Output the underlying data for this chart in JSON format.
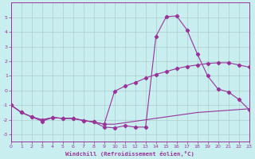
{
  "title": "",
  "xlabel": "Windchill (Refroidissement éolien,°C)",
  "background_color": "#c8eef0",
  "grid_color": "#b0cccc",
  "line_color": "#993399",
  "xlim": [
    0,
    23
  ],
  "ylim": [
    -3.5,
    6.0
  ],
  "yticks": [
    -3,
    -2,
    -1,
    0,
    1,
    2,
    3,
    4,
    5
  ],
  "xticks": [
    0,
    1,
    2,
    3,
    4,
    5,
    6,
    7,
    8,
    9,
    10,
    11,
    12,
    13,
    14,
    15,
    16,
    17,
    18,
    19,
    20,
    21,
    22,
    23
  ],
  "series1_x": [
    0,
    1,
    2,
    3,
    4,
    5,
    6,
    7,
    8,
    9,
    10,
    11,
    12,
    13,
    14,
    15,
    16,
    17,
    18,
    19,
    20,
    21,
    22,
    23
  ],
  "series1_y": [
    -1.0,
    -1.5,
    -1.8,
    -2.1,
    -1.85,
    -1.9,
    -1.9,
    -2.05,
    -2.15,
    -2.5,
    -2.55,
    -2.4,
    -2.5,
    -2.5,
    3.7,
    5.05,
    5.1,
    4.15,
    2.5,
    1.0,
    0.1,
    -0.1,
    -0.6,
    -1.3
  ],
  "series2_x": [
    0,
    1,
    2,
    3,
    4,
    5,
    6,
    7,
    8,
    9,
    10,
    11,
    12,
    13,
    14,
    15,
    16,
    17,
    18,
    19,
    20,
    21,
    22,
    23
  ],
  "series2_y": [
    -1.0,
    -1.5,
    -1.8,
    -2.0,
    -1.85,
    -1.9,
    -1.9,
    -2.05,
    -2.15,
    -2.3,
    -0.05,
    0.3,
    0.55,
    0.85,
    1.1,
    1.3,
    1.5,
    1.65,
    1.75,
    1.85,
    1.9,
    1.9,
    1.75,
    1.6
  ],
  "series3_x": [
    0,
    1,
    2,
    3,
    4,
    5,
    6,
    7,
    8,
    9,
    10,
    11,
    12,
    13,
    14,
    15,
    16,
    17,
    18,
    19,
    20,
    21,
    22,
    23
  ],
  "series3_y": [
    -1.0,
    -1.5,
    -1.8,
    -2.0,
    -1.85,
    -1.9,
    -1.9,
    -2.05,
    -2.15,
    -2.3,
    -2.3,
    -2.2,
    -2.1,
    -2.0,
    -1.9,
    -1.8,
    -1.7,
    -1.6,
    -1.5,
    -1.45,
    -1.4,
    -1.35,
    -1.3,
    -1.25
  ]
}
